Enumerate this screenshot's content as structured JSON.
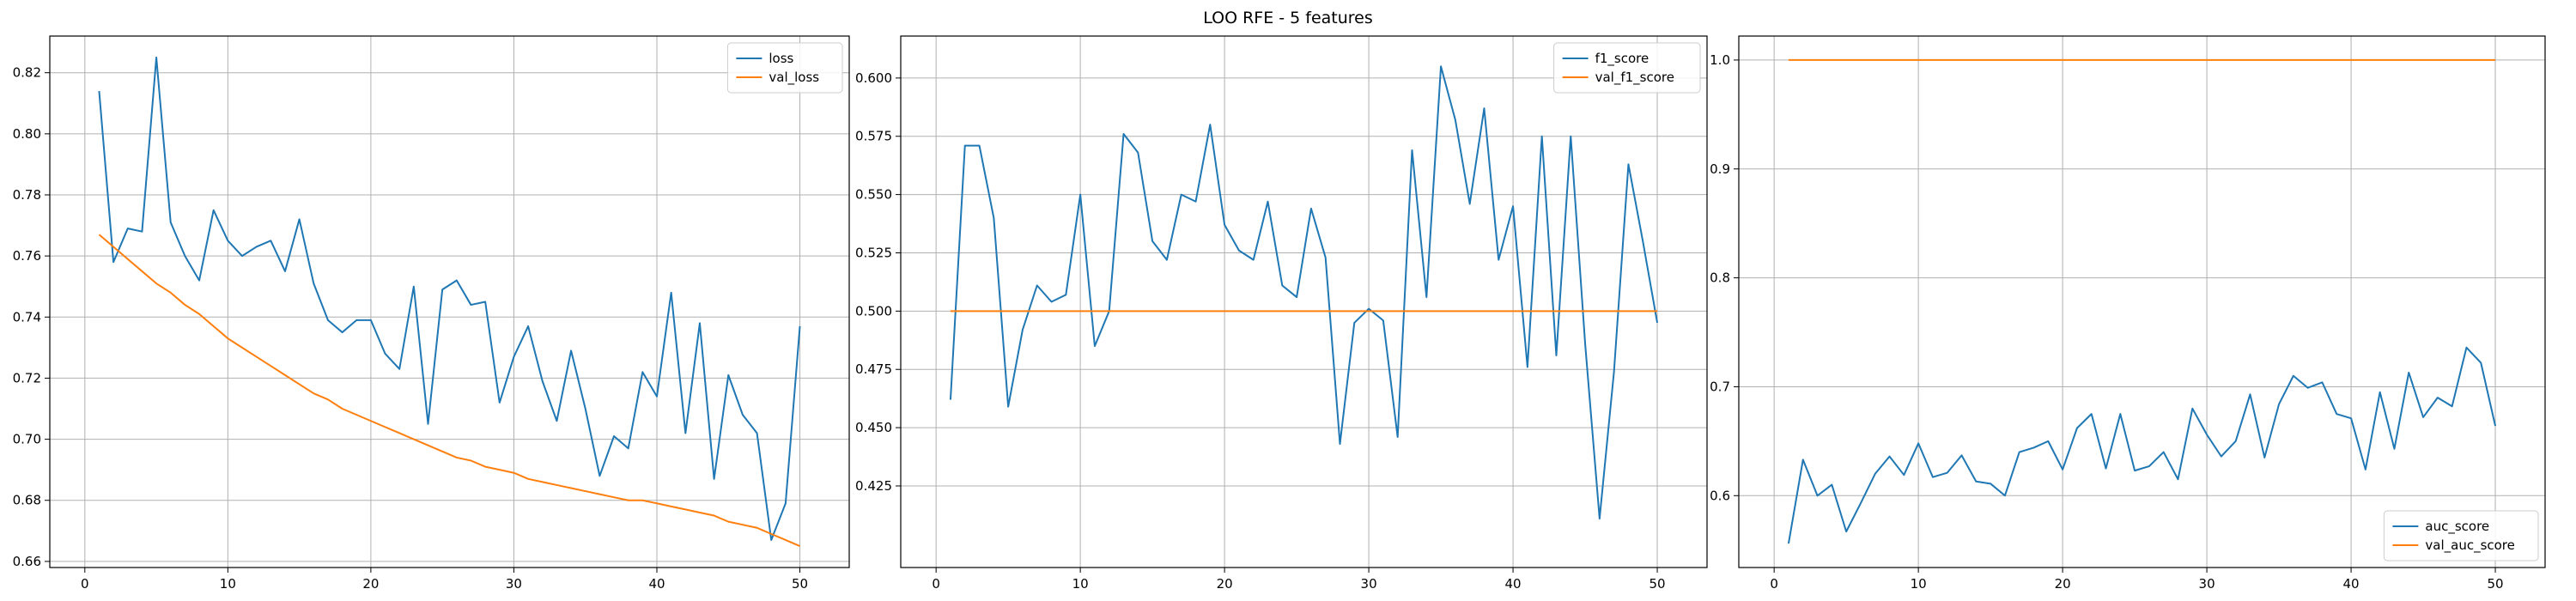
{
  "figure": {
    "title": "LOO RFE - 5 features"
  },
  "chart_data": [
    {
      "type": "line",
      "title": "",
      "xlabel": "",
      "ylabel": "",
      "xlim": [
        -2.45,
        53.45
      ],
      "ylim": [
        0.658,
        0.832
      ],
      "xticks": [
        0,
        10,
        20,
        30,
        40,
        50
      ],
      "yticks": [
        0.66,
        0.68,
        0.7,
        0.72,
        0.74,
        0.76,
        0.78,
        0.8,
        0.82
      ],
      "ytick_labels": [
        "0.66",
        "0.68",
        "0.70",
        "0.72",
        "0.74",
        "0.76",
        "0.78",
        "0.80",
        "0.82"
      ],
      "grid": true,
      "legend_position": "top-right",
      "x": [
        1,
        2,
        3,
        4,
        5,
        6,
        7,
        8,
        9,
        10,
        11,
        12,
        13,
        14,
        15,
        16,
        17,
        18,
        19,
        20,
        21,
        22,
        23,
        24,
        25,
        26,
        27,
        28,
        29,
        30,
        31,
        32,
        33,
        34,
        35,
        36,
        37,
        38,
        39,
        40,
        41,
        42,
        43,
        44,
        45,
        46,
        47,
        48,
        49,
        50
      ],
      "series": [
        {
          "name": "loss",
          "color": "#1f77b4",
          "values": [
            0.814,
            0.758,
            0.769,
            0.768,
            0.825,
            0.771,
            0.76,
            0.752,
            0.775,
            0.765,
            0.76,
            0.763,
            0.765,
            0.755,
            0.772,
            0.751,
            0.739,
            0.735,
            0.739,
            0.739,
            0.728,
            0.723,
            0.75,
            0.705,
            0.749,
            0.752,
            0.744,
            0.745,
            0.712,
            0.727,
            0.737,
            0.719,
            0.706,
            0.729,
            0.71,
            0.688,
            0.701,
            0.697,
            0.722,
            0.714,
            0.748,
            0.702,
            0.738,
            0.687,
            0.721,
            0.708,
            0.702,
            0.667,
            0.679,
            0.737
          ]
        },
        {
          "name": "val_loss",
          "color": "#ff7f0e",
          "values": [
            0.767,
            0.763,
            0.759,
            0.755,
            0.751,
            0.748,
            0.744,
            0.741,
            0.737,
            0.733,
            0.73,
            0.727,
            0.724,
            0.721,
            0.718,
            0.715,
            0.713,
            0.71,
            0.708,
            0.706,
            0.704,
            0.702,
            0.7,
            0.698,
            0.696,
            0.694,
            0.693,
            0.691,
            0.69,
            0.689,
            0.687,
            0.686,
            0.685,
            0.684,
            0.683,
            0.682,
            0.681,
            0.68,
            0.68,
            0.679,
            0.678,
            0.677,
            0.676,
            0.675,
            0.673,
            0.672,
            0.671,
            0.669,
            0.667,
            0.665
          ]
        }
      ]
    },
    {
      "type": "line",
      "title": "",
      "xlabel": "",
      "ylabel": "",
      "xlim": [
        -2.45,
        53.45
      ],
      "ylim": [
        0.39,
        0.618
      ],
      "xticks": [
        0,
        10,
        20,
        30,
        40,
        50
      ],
      "yticks": [
        0.425,
        0.45,
        0.475,
        0.5,
        0.525,
        0.55,
        0.575,
        0.6
      ],
      "ytick_labels": [
        "0.425",
        "0.450",
        "0.475",
        "0.500",
        "0.525",
        "0.550",
        "0.575",
        "0.600"
      ],
      "grid": true,
      "legend_position": "top-right",
      "x": [
        1,
        2,
        3,
        4,
        5,
        6,
        7,
        8,
        9,
        10,
        11,
        12,
        13,
        14,
        15,
        16,
        17,
        18,
        19,
        20,
        21,
        22,
        23,
        24,
        25,
        26,
        27,
        28,
        29,
        30,
        31,
        32,
        33,
        34,
        35,
        36,
        37,
        38,
        39,
        40,
        41,
        42,
        43,
        44,
        45,
        46,
        47,
        48,
        49,
        50
      ],
      "series": [
        {
          "name": "f1_score",
          "color": "#1f77b4",
          "values": [
            0.462,
            0.571,
            0.571,
            0.54,
            0.459,
            0.492,
            0.511,
            0.504,
            0.507,
            0.55,
            0.485,
            0.5,
            0.576,
            0.568,
            0.53,
            0.522,
            0.55,
            0.547,
            0.58,
            0.537,
            0.526,
            0.522,
            0.547,
            0.511,
            0.506,
            0.544,
            0.523,
            0.443,
            0.495,
            0.501,
            0.496,
            0.446,
            0.569,
            0.506,
            0.605,
            0.582,
            0.546,
            0.587,
            0.522,
            0.545,
            0.476,
            0.575,
            0.481,
            0.575,
            0.486,
            0.411,
            0.474,
            0.563,
            0.53,
            0.495
          ]
        },
        {
          "name": "val_f1_score",
          "color": "#ff7f0e",
          "values": [
            0.5,
            0.5,
            0.5,
            0.5,
            0.5,
            0.5,
            0.5,
            0.5,
            0.5,
            0.5,
            0.5,
            0.5,
            0.5,
            0.5,
            0.5,
            0.5,
            0.5,
            0.5,
            0.5,
            0.5,
            0.5,
            0.5,
            0.5,
            0.5,
            0.5,
            0.5,
            0.5,
            0.5,
            0.5,
            0.5,
            0.5,
            0.5,
            0.5,
            0.5,
            0.5,
            0.5,
            0.5,
            0.5,
            0.5,
            0.5,
            0.5,
            0.5,
            0.5,
            0.5,
            0.5,
            0.5,
            0.5,
            0.5,
            0.5,
            0.5
          ]
        }
      ]
    },
    {
      "type": "line",
      "title": "",
      "xlabel": "",
      "ylabel": "",
      "xlim": [
        -2.45,
        53.45
      ],
      "ylim": [
        0.534,
        1.022
      ],
      "xticks": [
        0,
        10,
        20,
        30,
        40,
        50
      ],
      "yticks": [
        0.6,
        0.7,
        0.8,
        0.9,
        1.0
      ],
      "ytick_labels": [
        "0.6",
        "0.7",
        "0.8",
        "0.9",
        "1.0"
      ],
      "grid": true,
      "legend_position": "bottom-right",
      "x": [
        1,
        2,
        3,
        4,
        5,
        6,
        7,
        8,
        9,
        10,
        11,
        12,
        13,
        14,
        15,
        16,
        17,
        18,
        19,
        20,
        21,
        22,
        23,
        24,
        25,
        26,
        27,
        28,
        29,
        30,
        31,
        32,
        33,
        34,
        35,
        36,
        37,
        38,
        39,
        40,
        41,
        42,
        43,
        44,
        45,
        46,
        47,
        48,
        49,
        50
      ],
      "series": [
        {
          "name": "auc_score",
          "color": "#1f77b4",
          "values": [
            0.556,
            0.633,
            0.6,
            0.61,
            0.567,
            0.593,
            0.62,
            0.636,
            0.619,
            0.648,
            0.617,
            0.621,
            0.637,
            0.613,
            0.611,
            0.6,
            0.64,
            0.644,
            0.65,
            0.624,
            0.662,
            0.675,
            0.625,
            0.675,
            0.623,
            0.627,
            0.64,
            0.615,
            0.68,
            0.656,
            0.636,
            0.65,
            0.693,
            0.635,
            0.684,
            0.71,
            0.699,
            0.704,
            0.675,
            0.671,
            0.624,
            0.695,
            0.643,
            0.713,
            0.672,
            0.69,
            0.682,
            0.736,
            0.722,
            0.664
          ]
        },
        {
          "name": "val_auc_score",
          "color": "#ff7f0e",
          "values": [
            1,
            1,
            1,
            1,
            1,
            1,
            1,
            1,
            1,
            1,
            1,
            1,
            1,
            1,
            1,
            1,
            1,
            1,
            1,
            1,
            1,
            1,
            1,
            1,
            1,
            1,
            1,
            1,
            1,
            1,
            1,
            1,
            1,
            1,
            1,
            1,
            1,
            1,
            1,
            1,
            1,
            1,
            1,
            1,
            1,
            1,
            1,
            1,
            1,
            1
          ]
        }
      ]
    }
  ]
}
